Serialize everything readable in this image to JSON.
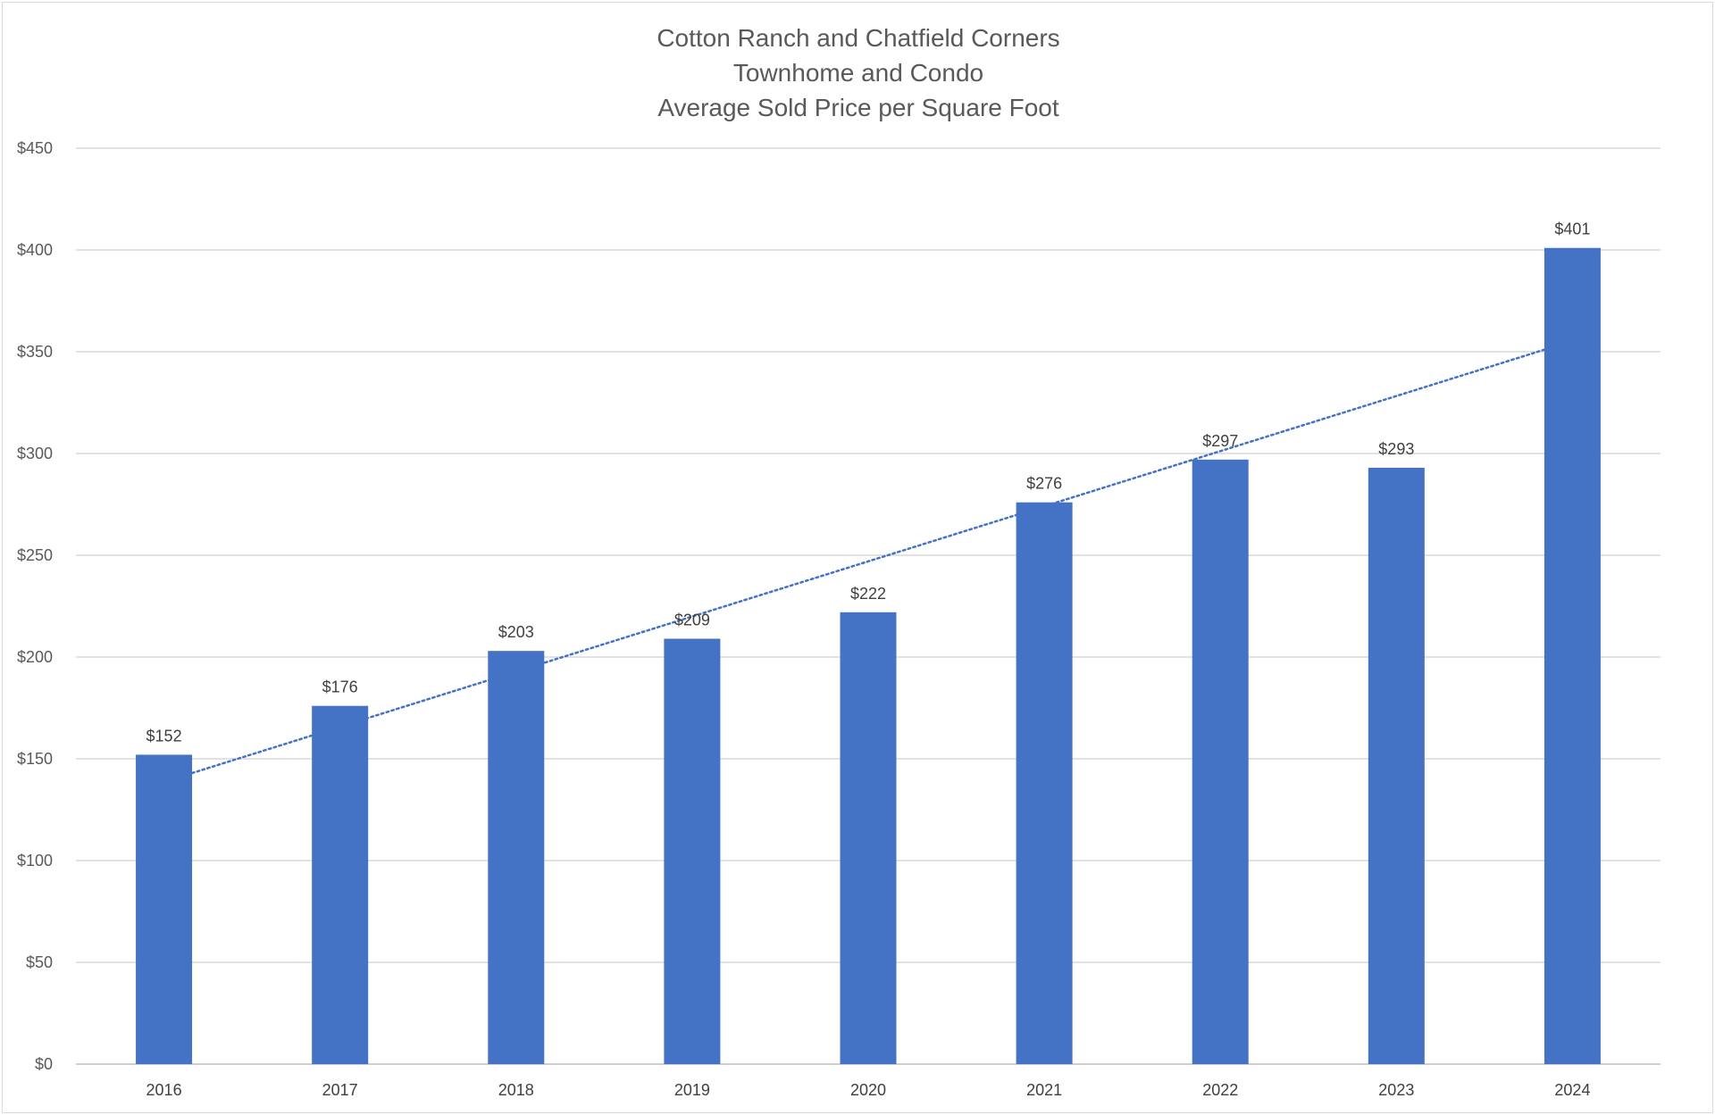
{
  "chart_data": {
    "type": "bar",
    "title_lines": [
      "Cotton Ranch and Chatfield Corners",
      "Townhome and Condo",
      "Average Sold Price per Square Foot"
    ],
    "categories": [
      "2016",
      "2017",
      "2018",
      "2019",
      "2020",
      "2021",
      "2022",
      "2023",
      "2024"
    ],
    "values": [
      152,
      176,
      203,
      209,
      222,
      276,
      297,
      293,
      401
    ],
    "data_labels": [
      "$152",
      "$176",
      "$203",
      "$209",
      "$222",
      "$276",
      "$297",
      "$293",
      "$401"
    ],
    "y_ticks": [
      0,
      50,
      100,
      150,
      200,
      250,
      300,
      350,
      400,
      450
    ],
    "y_tick_labels": [
      "$0",
      "$50",
      "$100",
      "$150",
      "$200",
      "$250",
      "$300",
      "$350",
      "$400",
      "$450"
    ],
    "ylim": [
      0,
      450
    ],
    "xlabel": "",
    "ylabel": "",
    "grid": true,
    "legend": "none",
    "bar_color": "#4472C4",
    "trendline": {
      "type": "linear",
      "style": "dotted",
      "color": "#4472C4",
      "start_value": 143,
      "end_value": 351
    }
  }
}
